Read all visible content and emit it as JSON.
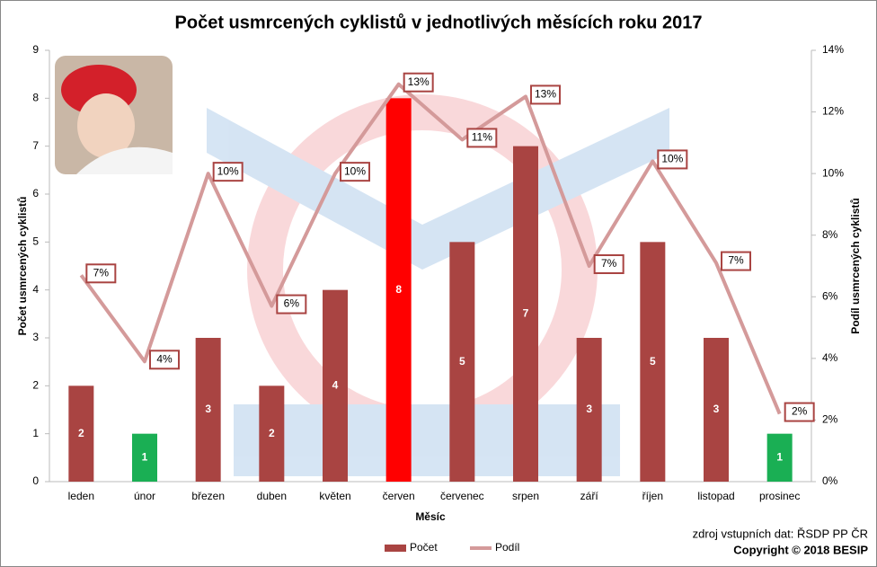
{
  "chart_data": {
    "type": "bar-line",
    "title": "Počet usmrcených cyklistů v jednotlivých měsících roku 2017",
    "x_label": "Měsíc",
    "y_label": "Počet usmrcených cyklistů",
    "y2_label": "Podíl usmrcených cyklistů",
    "categories": [
      "leden",
      "únor",
      "březen",
      "duben",
      "květen",
      "červen",
      "červenec",
      "srpen",
      "září",
      "říjen",
      "listopad",
      "prosinec"
    ],
    "series": [
      {
        "name": "Počet",
        "type": "bar",
        "color": "#a94442",
        "colors": [
          "#a94442",
          "#1aaf54",
          "#a94442",
          "#a94442",
          "#a94442",
          "#ff0000",
          "#a94442",
          "#a94442",
          "#a94442",
          "#a94442",
          "#a94442",
          "#1aaf54"
        ],
        "values": [
          2,
          1,
          3,
          2,
          4,
          8,
          5,
          7,
          3,
          5,
          3,
          1
        ]
      },
      {
        "name": "Podíl",
        "type": "line",
        "axis": "y2",
        "color": "#d49a9a",
        "values": [
          6.7,
          3.9,
          10.0,
          5.7,
          10.0,
          12.9,
          11.1,
          12.5,
          7.0,
          10.4,
          7.1,
          2.2
        ],
        "value_labels": [
          "7%",
          "4%",
          "10%",
          "6%",
          "10%",
          "13%",
          "11%",
          "13%",
          "7%",
          "10%",
          "7%",
          "2%"
        ]
      }
    ],
    "ylim": [
      0,
      9
    ],
    "yticks": [
      0,
      1,
      2,
      3,
      4,
      5,
      6,
      7,
      8,
      9
    ],
    "y2lim": [
      0,
      14
    ],
    "y2ticks": [
      {
        "value": 0,
        "label": "0%"
      },
      {
        "value": 2,
        "label": "2%"
      },
      {
        "value": 4,
        "label": "4%"
      },
      {
        "value": 6,
        "label": "6%"
      },
      {
        "value": 8,
        "label": "8%"
      },
      {
        "value": 10,
        "label": "10%"
      },
      {
        "value": 12,
        "label": "12%"
      },
      {
        "value": 14,
        "label": "14%"
      }
    ],
    "grid": false,
    "legend": "bottom",
    "source": "zdroj vstupních dat: ŘSDP PP ČR",
    "copyright": "Copyright © 2018  BESIP"
  }
}
